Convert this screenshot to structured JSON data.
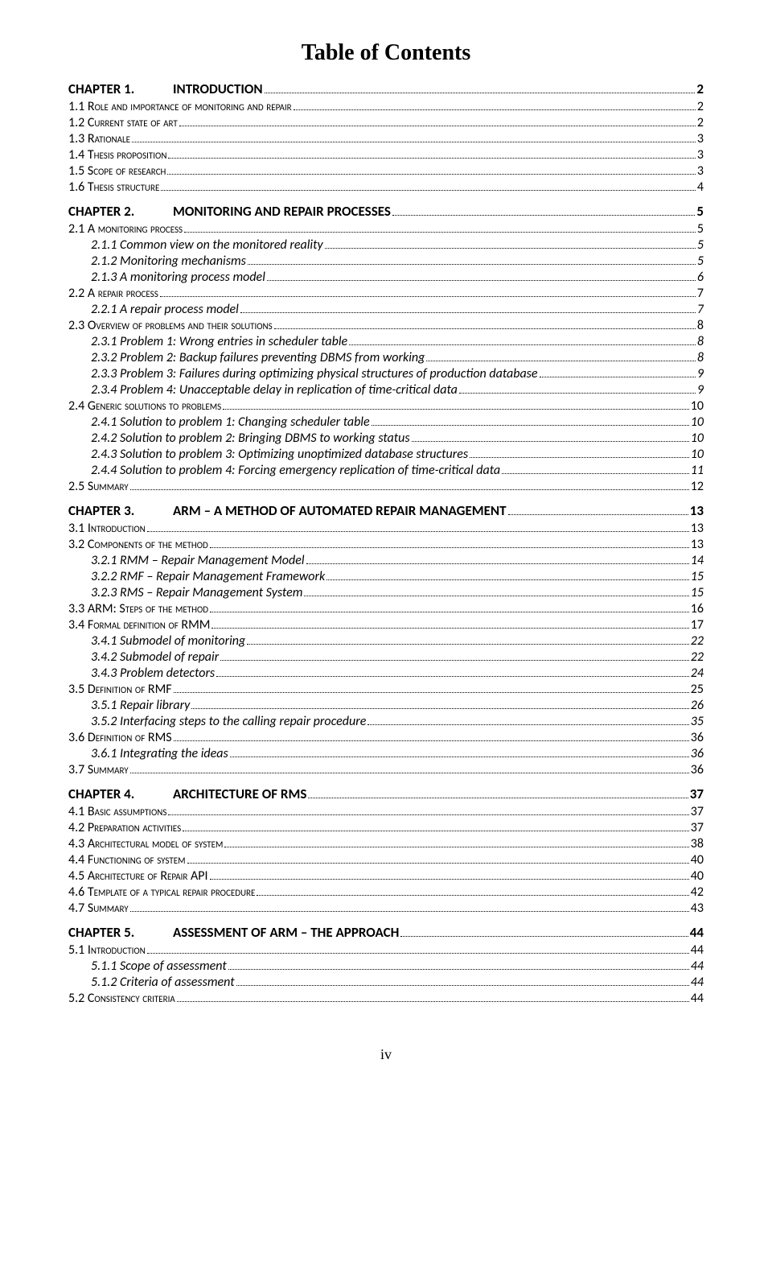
{
  "title": "Table of Contents",
  "pageNumber": "iv",
  "entries": [
    {
      "level": 0,
      "num": "CHAPTER 1.",
      "text": "INTRODUCTION",
      "page": "2"
    },
    {
      "level": 1,
      "num": "1.1",
      "text": "Role and importance of monitoring and repair",
      "page": "2"
    },
    {
      "level": 1,
      "num": "1.2",
      "text": "Current state of art",
      "page": "2"
    },
    {
      "level": 1,
      "num": "1.3",
      "text": "Rationale",
      "page": "3"
    },
    {
      "level": 1,
      "num": "1.4",
      "text": "Thesis proposition",
      "page": "3"
    },
    {
      "level": 1,
      "num": "1.5",
      "text": "Scope of research",
      "page": "3"
    },
    {
      "level": 1,
      "num": "1.6",
      "text": "Thesis structure",
      "page": "4"
    },
    {
      "level": 0,
      "num": "CHAPTER 2.",
      "text": "MONITORING AND REPAIR PROCESSES",
      "page": "5"
    },
    {
      "level": 1,
      "num": "2.1",
      "text": "A monitoring process",
      "page": "5"
    },
    {
      "level": 2,
      "num": "2.1.1",
      "text": "Common view on the monitored reality",
      "page": "5"
    },
    {
      "level": 2,
      "num": "2.1.2",
      "text": "Monitoring mechanisms",
      "page": "5"
    },
    {
      "level": 2,
      "num": "2.1.3",
      "text": "A monitoring process model",
      "page": "6"
    },
    {
      "level": 1,
      "num": "2.2",
      "text": "A repair process",
      "page": "7"
    },
    {
      "level": 2,
      "num": "2.2.1",
      "text": "A repair process model",
      "page": "7"
    },
    {
      "level": 1,
      "num": "2.3",
      "text": "Overview of problems and their solutions",
      "page": "8"
    },
    {
      "level": 2,
      "num": "2.3.1",
      "text": "Problem 1: Wrong entries in scheduler table",
      "page": "8"
    },
    {
      "level": 2,
      "num": "2.3.2",
      "text": "Problem 2: Backup failures preventing DBMS from working",
      "page": "8"
    },
    {
      "level": 2,
      "num": "2.3.3",
      "text": "Problem 3: Failures during optimizing physical structures of production database",
      "page": "9"
    },
    {
      "level": 2,
      "num": "2.3.4",
      "text": "Problem 4: Unacceptable delay in replication of time-critical data",
      "page": "9"
    },
    {
      "level": 1,
      "num": "2.4",
      "text": "Generic solutions to problems",
      "page": "10"
    },
    {
      "level": 2,
      "num": "2.4.1",
      "text": "Solution to problem 1: Changing scheduler table",
      "page": "10"
    },
    {
      "level": 2,
      "num": "2.4.2",
      "text": "Solution to problem 2: Bringing DBMS to working status",
      "page": "10"
    },
    {
      "level": 2,
      "num": "2.4.3",
      "text": "Solution to problem 3: Optimizing unoptimized database structures",
      "page": "10"
    },
    {
      "level": 2,
      "num": "2.4.4",
      "text": "Solution to problem 4: Forcing emergency replication of time-critical data",
      "page": "11"
    },
    {
      "level": 1,
      "num": "2.5",
      "text": "Summary",
      "page": "12"
    },
    {
      "level": 0,
      "num": "CHAPTER 3.",
      "text": "ARM – A METHOD OF AUTOMATED REPAIR MANAGEMENT",
      "page": "13"
    },
    {
      "level": 1,
      "num": "3.1",
      "text": "Introduction",
      "page": "13"
    },
    {
      "level": 1,
      "num": "3.2",
      "text": "Components of the method",
      "page": "13"
    },
    {
      "level": 2,
      "num": "3.2.1",
      "text": "RMM – Repair Management Model",
      "page": "14"
    },
    {
      "level": 2,
      "num": "3.2.2",
      "text": "RMF – Repair Management Framework",
      "page": "15"
    },
    {
      "level": 2,
      "num": "3.2.3",
      "text": "RMS – Repair Management System",
      "page": "15"
    },
    {
      "level": 1,
      "num": "3.3",
      "text": "ARM: Steps of the method",
      "page": "16"
    },
    {
      "level": 1,
      "num": "3.4",
      "text": "Formal definition of RMM",
      "page": "17"
    },
    {
      "level": 2,
      "num": "3.4.1",
      "text": "Submodel of monitoring",
      "page": "22"
    },
    {
      "level": 2,
      "num": "3.4.2",
      "text": "Submodel of repair",
      "page": "22"
    },
    {
      "level": 2,
      "num": "3.4.3",
      "text": "Problem detectors",
      "page": "24"
    },
    {
      "level": 1,
      "num": "3.5",
      "text": "Definition of RMF",
      "page": "25"
    },
    {
      "level": 2,
      "num": "3.5.1",
      "text": "Repair library",
      "page": "26"
    },
    {
      "level": 2,
      "num": "3.5.2",
      "text": "Interfacing steps to the calling repair procedure",
      "page": "35"
    },
    {
      "level": 1,
      "num": "3.6",
      "text": "Definition of RMS",
      "page": "36"
    },
    {
      "level": 2,
      "num": "3.6.1",
      "text": "Integrating the ideas",
      "page": "36"
    },
    {
      "level": 1,
      "num": "3.7",
      "text": "Summary",
      "page": "36"
    },
    {
      "level": 0,
      "num": "CHAPTER 4.",
      "text": "ARCHITECTURE OF RMS",
      "page": "37"
    },
    {
      "level": 1,
      "num": "4.1",
      "text": "Basic assumptions",
      "page": "37"
    },
    {
      "level": 1,
      "num": "4.2",
      "text": "Preparation activities",
      "page": "37"
    },
    {
      "level": 1,
      "num": "4.3",
      "text": "Architectural model of system",
      "page": "38"
    },
    {
      "level": 1,
      "num": "4.4",
      "text": "Functioning of system",
      "page": "40"
    },
    {
      "level": 1,
      "num": "4.5",
      "text": "Architecture of Repair API",
      "page": "40"
    },
    {
      "level": 1,
      "num": "4.6",
      "text": "Template of a typical repair procedure",
      "page": "42"
    },
    {
      "level": 1,
      "num": "4.7",
      "text": "Summary",
      "page": "43"
    },
    {
      "level": 0,
      "num": "CHAPTER 5.",
      "text": "ASSESSMENT OF ARM – THE APPROACH",
      "page": "44"
    },
    {
      "level": 1,
      "num": "5.1",
      "text": "Introduction",
      "page": "44"
    },
    {
      "level": 2,
      "num": "5.1.1",
      "text": "Scope of assessment",
      "page": "44"
    },
    {
      "level": 2,
      "num": "5.1.2",
      "text": "Criteria of assessment",
      "page": "44"
    },
    {
      "level": 1,
      "num": "5.2",
      "text": "Consistency criteria",
      "page": "44"
    }
  ]
}
